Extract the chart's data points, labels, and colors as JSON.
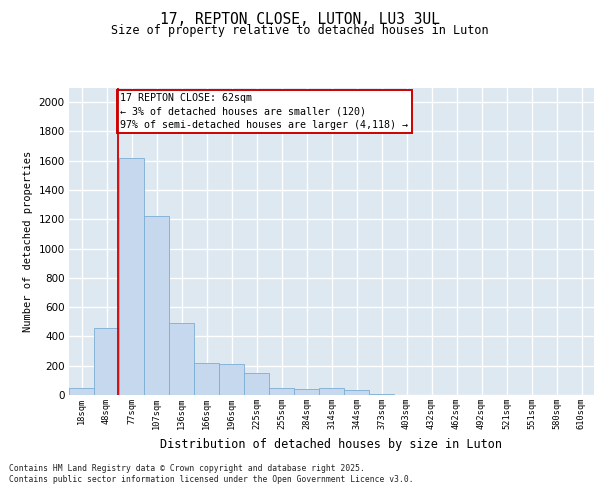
{
  "title_line1": "17, REPTON CLOSE, LUTON, LU3 3UL",
  "title_line2": "Size of property relative to detached houses in Luton",
  "xlabel": "Distribution of detached houses by size in Luton",
  "ylabel": "Number of detached properties",
  "categories": [
    "18sqm",
    "48sqm",
    "77sqm",
    "107sqm",
    "136sqm",
    "166sqm",
    "196sqm",
    "225sqm",
    "255sqm",
    "284sqm",
    "314sqm",
    "344sqm",
    "373sqm",
    "403sqm",
    "432sqm",
    "462sqm",
    "492sqm",
    "521sqm",
    "551sqm",
    "580sqm",
    "610sqm"
  ],
  "values": [
    50,
    455,
    1620,
    1220,
    490,
    220,
    215,
    150,
    50,
    40,
    50,
    35,
    5,
    0,
    0,
    0,
    0,
    0,
    0,
    0,
    0
  ],
  "bar_color": "#c5d8ee",
  "bar_edgecolor": "#7aadd4",
  "annotation_line1": "17 REPTON CLOSE: 62sqm",
  "annotation_line2": "← 3% of detached houses are smaller (120)",
  "annotation_line3": "97% of semi-detached houses are larger (4,118) →",
  "annotation_box_color": "#cc0000",
  "red_line_x": 1.45,
  "ylim": [
    0,
    2100
  ],
  "yticks": [
    0,
    200,
    400,
    600,
    800,
    1000,
    1200,
    1400,
    1600,
    1800,
    2000
  ],
  "background_color": "#dde8f0",
  "grid_color": "#ffffff",
  "fig_background": "#ffffff",
  "footer_line1": "Contains HM Land Registry data © Crown copyright and database right 2025.",
  "footer_line2": "Contains public sector information licensed under the Open Government Licence v3.0."
}
